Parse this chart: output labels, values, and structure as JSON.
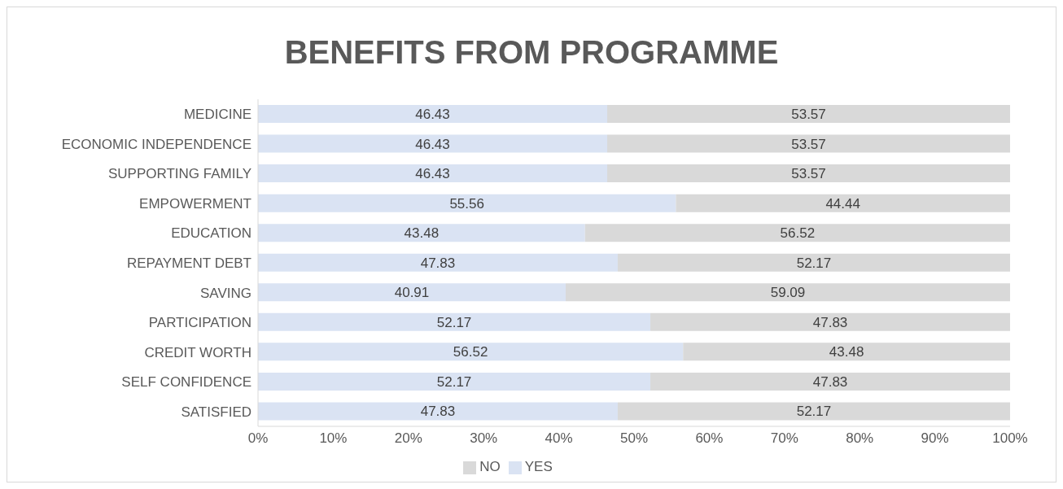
{
  "chart_data": {
    "type": "bar",
    "title": "BENEFITS FROM PROGRAMME",
    "orientation": "horizontal",
    "stacked": true,
    "categories": [
      "MEDICINE",
      "ECONOMIC INDEPENDENCE",
      "SUPPORTING FAMILY",
      "EMPOWERMENT",
      "EDUCATION",
      "REPAYMENT DEBT",
      "SAVING",
      "PARTICIPATION",
      "CREDIT WORTH",
      "SELF CONFIDENCE",
      "SATISFIED"
    ],
    "series": [
      {
        "name": "YES",
        "color": "#dae3f3",
        "values": [
          46.43,
          46.43,
          46.43,
          55.56,
          43.48,
          47.83,
          40.91,
          52.17,
          56.52,
          52.17,
          47.83
        ]
      },
      {
        "name": "NO",
        "color": "#d9d9d9",
        "values": [
          53.57,
          53.57,
          53.57,
          44.44,
          56.52,
          52.17,
          59.09,
          47.83,
          43.48,
          47.83,
          52.17
        ]
      }
    ],
    "xlim": [
      0,
      100
    ],
    "xticks": [
      {
        "value": 0,
        "label": "0%"
      },
      {
        "value": 10,
        "label": "10%"
      },
      {
        "value": 20,
        "label": "20%"
      },
      {
        "value": 30,
        "label": "30%"
      },
      {
        "value": 40,
        "label": "40%"
      },
      {
        "value": 50,
        "label": "50%"
      },
      {
        "value": 60,
        "label": "60%"
      },
      {
        "value": 70,
        "label": "70%"
      },
      {
        "value": 80,
        "label": "80%"
      },
      {
        "value": 90,
        "label": "90%"
      },
      {
        "value": 100,
        "label": "100%"
      }
    ],
    "data_labels": true,
    "legend": "bottom"
  }
}
